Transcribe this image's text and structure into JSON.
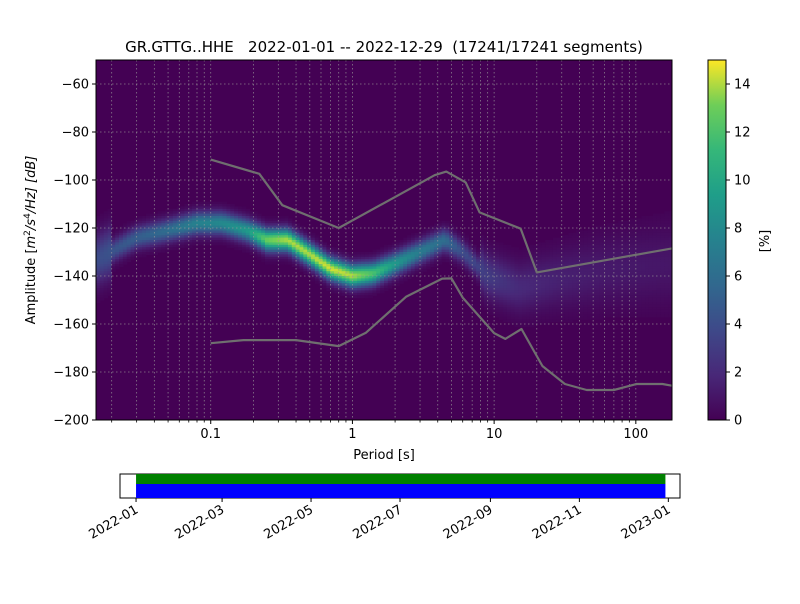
{
  "chart_data": [
    {
      "type": "heatmap",
      "title": "GR.GTTG..HHE   2022-01-01 -- 2022-12-29  (17241/17241 segments)",
      "xlabel": "Period [s]",
      "ylabel": "Amplitude [m²/s⁴/Hz] [dB]",
      "ylabel_parts": {
        "prefix": "Amplitude [",
        "m": "m",
        "two": "2",
        "mid": "/s",
        "four": "4",
        "suffix": "/Hz] [dB]"
      },
      "x_scale": "log",
      "xlim": [
        0.0155,
        180
      ],
      "ylim": [
        -200,
        -50
      ],
      "x_tick_labels": [
        {
          "value": 0.1,
          "label": "0.1"
        },
        {
          "value": 1,
          "label": "1"
        },
        {
          "value": 10,
          "label": "10"
        },
        {
          "value": 100,
          "label": "100"
        }
      ],
      "y_tick_labels": [
        {
          "value": -60,
          "label": "−60"
        },
        {
          "value": -80,
          "label": "−80"
        },
        {
          "value": -100,
          "label": "−100"
        },
        {
          "value": -120,
          "label": "−120"
        },
        {
          "value": -140,
          "label": "−140"
        },
        {
          "value": -160,
          "label": "−160"
        },
        {
          "value": -180,
          "label": "−180"
        },
        {
          "value": -200,
          "label": "−200"
        }
      ],
      "grid": true,
      "colormap": "viridis",
      "colorbar": {
        "label": "[%]",
        "range": [
          0,
          15
        ],
        "tick_labels": [
          {
            "value": 0,
            "label": "0"
          },
          {
            "value": 2,
            "label": "2"
          },
          {
            "value": 4,
            "label": "4"
          },
          {
            "value": 6,
            "label": "6"
          },
          {
            "value": 8,
            "label": "8"
          },
          {
            "value": 10,
            "label": "10"
          },
          {
            "value": 12,
            "label": "12"
          },
          {
            "value": 14,
            "label": "14"
          }
        ]
      },
      "density_ridge": [
        {
          "period": 0.016,
          "db": -133,
          "peak_pct": 4
        },
        {
          "period": 0.03,
          "db": -124,
          "peak_pct": 5
        },
        {
          "period": 0.05,
          "db": -121,
          "peak_pct": 6
        },
        {
          "period": 0.08,
          "db": -118,
          "peak_pct": 7.5
        },
        {
          "period": 0.12,
          "db": -118,
          "peak_pct": 8
        },
        {
          "period": 0.18,
          "db": -121,
          "peak_pct": 9
        },
        {
          "period": 0.25,
          "db": -125,
          "peak_pct": 13
        },
        {
          "period": 0.35,
          "db": -125,
          "peak_pct": 14
        },
        {
          "period": 0.5,
          "db": -131,
          "peak_pct": 14
        },
        {
          "period": 0.7,
          "db": -137,
          "peak_pct": 14.5
        },
        {
          "period": 1.0,
          "db": -140,
          "peak_pct": 14
        },
        {
          "period": 1.4,
          "db": -139,
          "peak_pct": 12
        },
        {
          "period": 2.0,
          "db": -135,
          "peak_pct": 9
        },
        {
          "period": 3.0,
          "db": -130,
          "peak_pct": 7
        },
        {
          "period": 4.5,
          "db": -125,
          "peak_pct": 6
        },
        {
          "period": 6.0,
          "db": -130,
          "peak_pct": 4
        },
        {
          "period": 9.0,
          "db": -140,
          "peak_pct": 3
        },
        {
          "period": 15,
          "db": -145,
          "peak_pct": 2
        },
        {
          "period": 30,
          "db": -141,
          "peak_pct": 1.5
        },
        {
          "period": 60,
          "db": -138,
          "peak_pct": 1.2
        },
        {
          "period": 180,
          "db": -135,
          "peak_pct": 1
        }
      ],
      "series": [
        {
          "role": "upper model",
          "x": [
            0.1,
            0.22,
            0.32,
            0.8,
            3.8,
            4.6,
            6.3,
            7.9,
            15.4,
            20,
            180
          ],
          "y": [
            -91.5,
            -97.4,
            -110.5,
            -120,
            -98,
            -96.5,
            -101,
            -113.5,
            -120.3,
            -138.5,
            -128.5
          ]
        },
        {
          "role": "lower model",
          "x": [
            0.1,
            0.17,
            0.4,
            0.8,
            1.24,
            2.4,
            4.3,
            5.0,
            6.0,
            10,
            12,
            15.6,
            21.9,
            31.6,
            45,
            70,
            101,
            154,
            180
          ],
          "y": [
            -168,
            -166.7,
            -166.7,
            -169.2,
            -163.7,
            -148.6,
            -141.1,
            -141,
            -149,
            -163.8,
            -166.2,
            -162.1,
            -177.5,
            -185,
            -187.5,
            -187.5,
            -185,
            -185,
            -185.7
          ]
        }
      ]
    },
    {
      "type": "bar",
      "x_tick_labels": [
        "2022-01",
        "2022-03",
        "2022-05",
        "2022-07",
        "2022-09",
        "2022-11",
        "2023-01"
      ],
      "x_range": [
        "2021-12-21",
        "2023-01-09"
      ],
      "series": [
        {
          "role": "data coverage",
          "color": "#0000ff",
          "start": "2022-01-01",
          "end": "2022-12-30"
        },
        {
          "role": "processed segments",
          "color": "#008000",
          "start": "2022-01-01",
          "end": "2022-12-30"
        }
      ]
    }
  ]
}
